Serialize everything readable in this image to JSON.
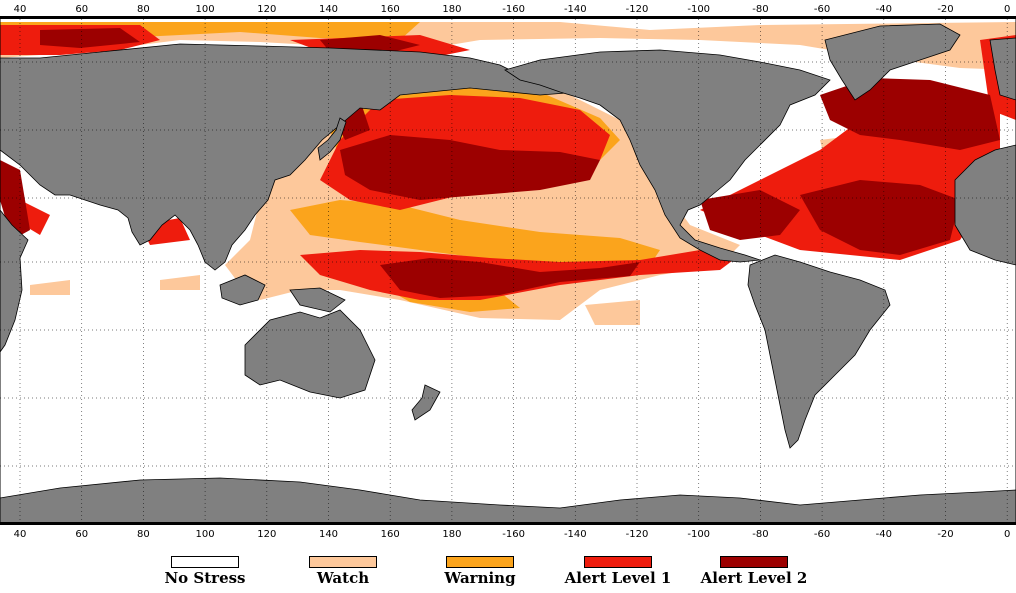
{
  "map": {
    "top_ticks": [
      "40",
      "60",
      "80",
      "100",
      "120",
      "140",
      "160",
      "180",
      "-160",
      "-140",
      "-120",
      "-100",
      "-80",
      "-60",
      "-40",
      "-20",
      "0"
    ],
    "bottom_ticks": [
      "40",
      "60",
      "80",
      "100",
      "120",
      "140",
      "160",
      "180",
      "-160",
      "-140",
      "-120",
      "-100",
      "-80",
      "-60",
      "-40",
      "-20",
      "0"
    ],
    "colors": {
      "land": "#808080",
      "no_stress": "#ffffff",
      "watch": "#fdc89b",
      "warning": "#fba41c",
      "alert1": "#ee1c0d",
      "alert2": "#9c0000"
    }
  },
  "legend": [
    {
      "label": "No Stress",
      "color": "#ffffff"
    },
    {
      "label": "Watch",
      "color": "#fdc89b"
    },
    {
      "label": "Warning",
      "color": "#fba41c"
    },
    {
      "label": "Alert Level 1",
      "color": "#ee1c0d"
    },
    {
      "label": "Alert Level 2",
      "color": "#9c0000"
    }
  ]
}
